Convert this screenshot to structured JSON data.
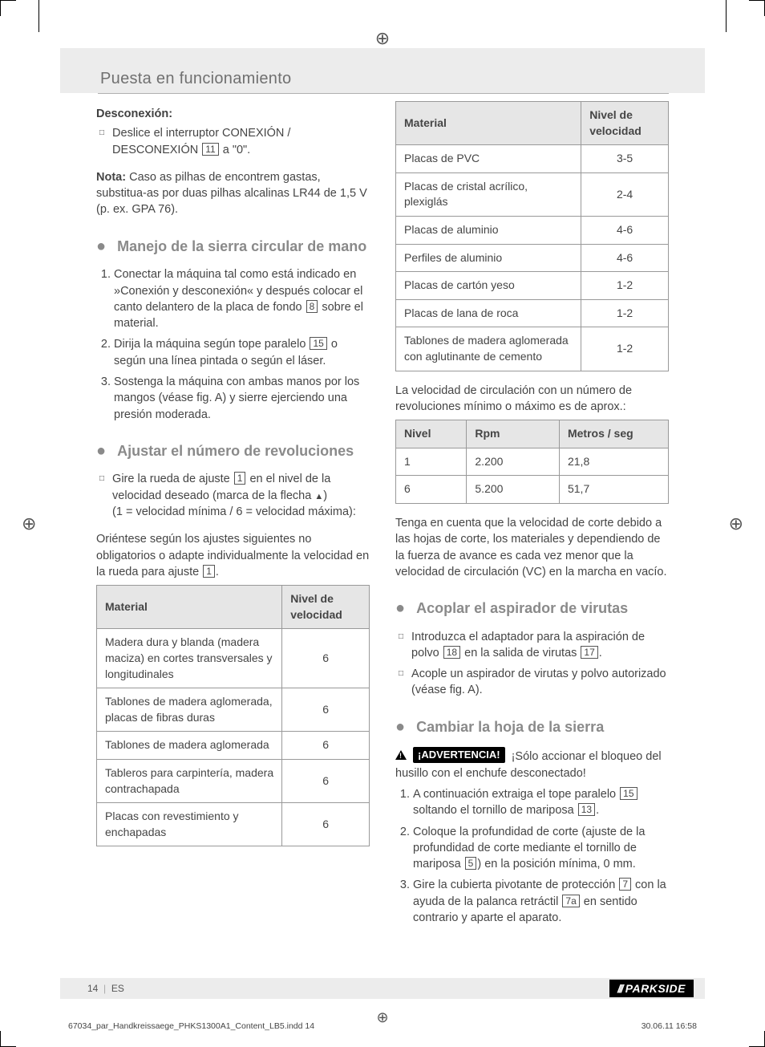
{
  "header": {
    "title": "Puesta en funcionamiento"
  },
  "left": {
    "desconexion_h": "Desconexión:",
    "desconexion_line_a": "Deslice el interruptor CONEXIÓN /",
    "desconexion_line_b_pre": "DESCONEXIÓN ",
    "desconexion_ref": "11",
    "desconexion_line_b_post": " a \"0\".",
    "nota_label": "Nota:",
    "nota_text": " Caso as pilhas de encontrem gastas, substitua-as por duas pilhas alcalinas LR44 de 1,5 V (p. ex. GPA 76).",
    "sec1_title": "Manejo de la sierra circular de mano",
    "sec1_li1_a": "Conectar la máquina tal como está indicado en »Conexión y desconexión« y después colocar el canto delantero de la placa de fondo ",
    "sec1_li1_ref": "8",
    "sec1_li1_b": " sobre el material.",
    "sec1_li2_a": "Dirija la máquina según tope paralelo ",
    "sec1_li2_ref": "15",
    "sec1_li2_b": " o según una línea pintada o según el láser.",
    "sec1_li3": "Sostenga la máquina con ambas manos por los mangos (véase fig. A) y sierre ejerciendo una presión moderada.",
    "sec2_title": "Ajustar el número de revoluciones",
    "sec2_b1_a": "Gire la rueda de ajuste ",
    "sec2_b1_ref": "1",
    "sec2_b1_b": " en el nivel de la velocidad deseado (marca de la flecha ",
    "sec2_b1_c": ")",
    "sec2_b1_d": "(1 = velocidad mínima / 6 = velocidad máxima):",
    "sec2_para_a": "Oriéntese según los ajustes siguientes no obligatorios o adapte individualmente la velocidad en la rueda para ajuste ",
    "sec2_para_ref": "1",
    "sec2_para_b": ".",
    "table1": {
      "headers": [
        "Material",
        "Nivel de velocidad"
      ],
      "rows": [
        [
          "Madera dura y blanda (madera maciza) en cortes transversales y longitudinales",
          "6"
        ],
        [
          "Tablones de madera aglomerada, placas de fibras duras",
          "6"
        ],
        [
          "Tablones de madera aglomerada",
          "6"
        ],
        [
          "Tableros para carpintería, madera contrachapada",
          "6"
        ],
        [
          "Placas con revestimiento y enchapadas",
          "6"
        ]
      ]
    }
  },
  "right": {
    "table_top": {
      "headers": [
        "Material",
        "Nivel de velocidad"
      ],
      "rows": [
        [
          "Placas de PVC",
          "3-5"
        ],
        [
          "Placas de cristal acrílico, plexiglás",
          "2-4"
        ],
        [
          "Placas de aluminio",
          "4-6"
        ],
        [
          "Perfiles de aluminio",
          "4-6"
        ],
        [
          "Placas de cartón yeso",
          "1-2"
        ],
        [
          "Placas de lana de roca",
          "1-2"
        ],
        [
          "Tablones de madera aglomerada con aglutinante de cemento",
          "1-2"
        ]
      ]
    },
    "para_speed": "La velocidad de circulación con un número de revoluciones mínimo o máximo es de aprox.:",
    "table_speed": {
      "headers": [
        "Nivel",
        "Rpm",
        "Metros / seg"
      ],
      "rows": [
        [
          "1",
          "2.200",
          "21,8"
        ],
        [
          "6",
          "5.200",
          "51,7"
        ]
      ]
    },
    "para_note2": "Tenga en cuenta que la velocidad de corte debido a las hojas de corte, los materiales y dependiendo de la fuerza de avance es cada vez menor que la velocidad de circulación (VC) en la marcha en vacío.",
    "sec3_title": "Acoplar el aspirador de virutas",
    "sec3_b1_a": "Introduzca el adaptador para la aspiración de polvo ",
    "sec3_b1_ref1": "18",
    "sec3_b1_mid": " en la salida de virutas ",
    "sec3_b1_ref2": "17",
    "sec3_b1_end": ".",
    "sec3_b2": "Acople un aspirador de virutas y polvo autorizado (véase fig. A).",
    "sec4_title": "Cambiar la hoja de la sierra",
    "warn_label": "¡ADVERTENCIA!",
    "warn_text": " ¡Sólo accionar el bloqueo del husillo con el enchufe desconectado!",
    "sec4_li1_a": "A continuación extraiga el tope paralelo ",
    "sec4_li1_ref1": "15",
    "sec4_li1_mid": " soltando el tornillo de mariposa ",
    "sec4_li1_ref2": "13",
    "sec4_li1_end": ".",
    "sec4_li2_a": "Coloque la profundidad de corte (ajuste de la profundidad de corte mediante el tornillo de mariposa ",
    "sec4_li2_ref": "5",
    "sec4_li2_b": ") en la posición mínima, 0 mm.",
    "sec4_li3_a": "Gire la cubierta pivotante de protección ",
    "sec4_li3_ref1": "7",
    "sec4_li3_mid": " con la ayuda de la palanca retráctil ",
    "sec4_li3_ref2": "7a",
    "sec4_li3_end": " en sentido contrario y aparte el aparato."
  },
  "footer": {
    "page": "14",
    "lang": "ES",
    "brand": "PARKSIDE"
  },
  "slug": {
    "file": "67034_par_Handkreissaege_PHKS1300A1_Content_LB5.indd   14",
    "date": "30.06.11   16:58"
  }
}
